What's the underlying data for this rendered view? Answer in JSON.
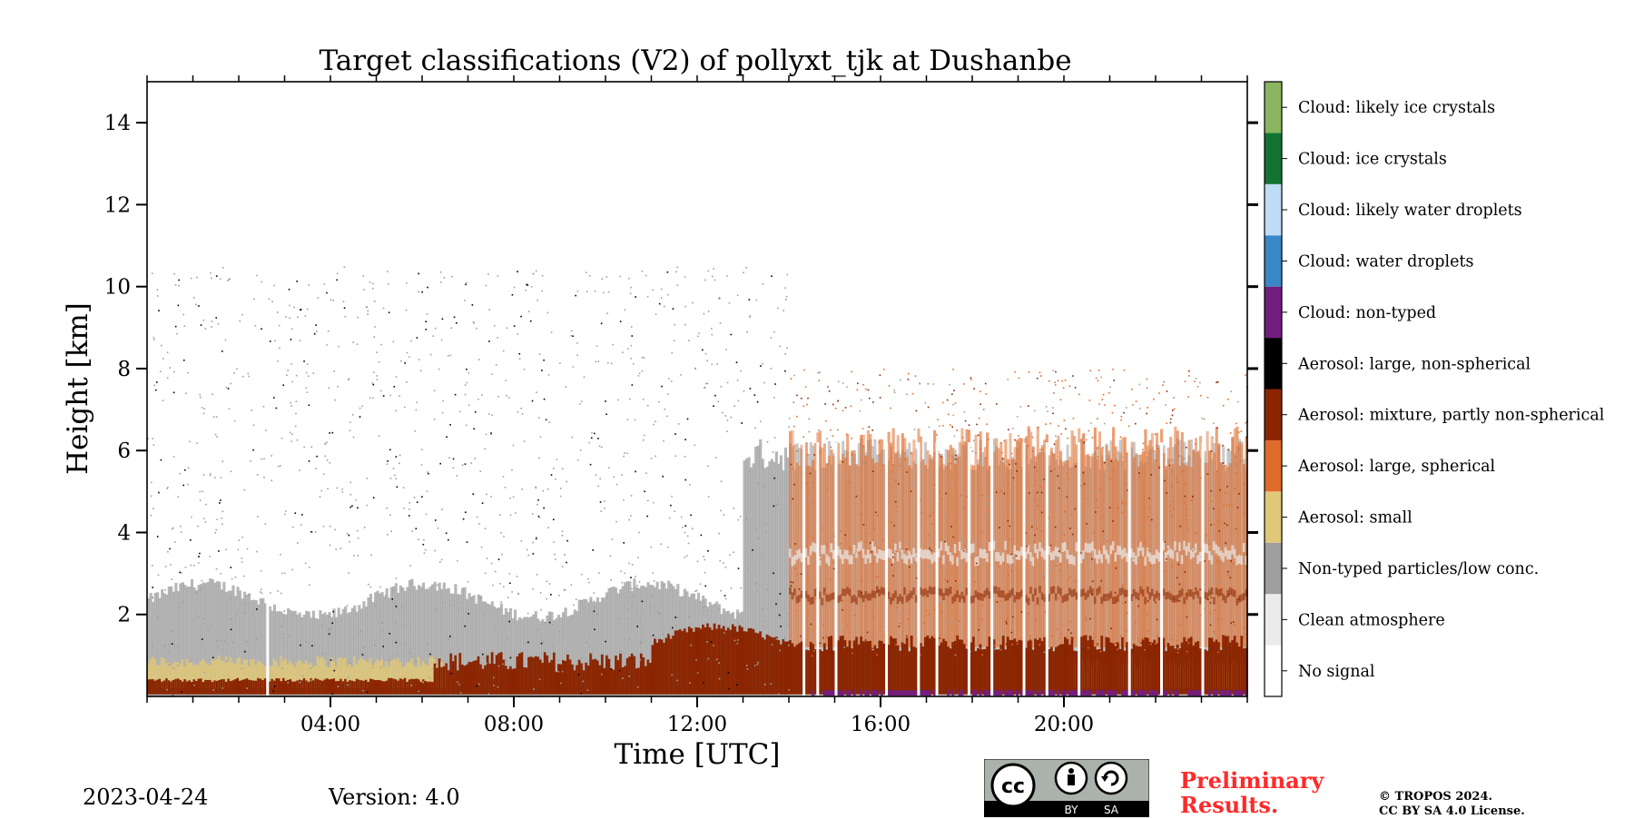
{
  "chart_data": {
    "type": "heatmap",
    "title": "Target classifications (V2) of pollyxt_tjk at Dushanbe",
    "xlabel": "Time [UTC]",
    "ylabel": "Height [km]",
    "xlim": [
      0,
      24
    ],
    "ylim": [
      0,
      15
    ],
    "x_ticks": [
      {
        "value": 4,
        "label": "04:00"
      },
      {
        "value": 8,
        "label": "08:00"
      },
      {
        "value": 12,
        "label": "12:00"
      },
      {
        "value": 16,
        "label": "16:00"
      },
      {
        "value": 20,
        "label": "20:00"
      }
    ],
    "y_ticks": [
      {
        "value": 2,
        "label": "2"
      },
      {
        "value": 4,
        "label": "4"
      },
      {
        "value": 6,
        "label": "6"
      },
      {
        "value": 8,
        "label": "8"
      },
      {
        "value": 10,
        "label": "10"
      },
      {
        "value": 12,
        "label": "12"
      },
      {
        "value": 14,
        "label": "14"
      }
    ],
    "classes": [
      {
        "label": "No signal",
        "color": "#ffffff"
      },
      {
        "label": "Clean atmosphere",
        "color": "#ebebeb"
      },
      {
        "label": "Non-typed particles/low conc.",
        "color": "#9e9e9e"
      },
      {
        "label": "Aerosol: small",
        "color": "#e1c878"
      },
      {
        "label": "Aerosol: large, spherical",
        "color": "#e06c2c"
      },
      {
        "label": "Aerosol: mixture, partly non-spherical",
        "color": "#8b2500"
      },
      {
        "label": "Aerosol: large, non-spherical",
        "color": "#000000"
      },
      {
        "label": "Cloud: non-typed",
        "color": "#721d7f"
      },
      {
        "label": "Cloud: water droplets",
        "color": "#3a87c7"
      },
      {
        "label": "Cloud: likely water droplets",
        "color": "#bfdcf7"
      },
      {
        "label": "Cloud: ice crystals",
        "color": "#137333"
      },
      {
        "label": "Cloud: likely ice crystals",
        "color": "#89b560"
      }
    ],
    "features": [
      {
        "class": "Aerosol: mixture, partly non-spherical",
        "time_range": [
          6.2,
          24
        ],
        "height_top_km": 1.2
      },
      {
        "class": "Aerosol: mixture, partly non-spherical",
        "time_range": [
          0,
          24
        ],
        "height_top_km": 0.35
      },
      {
        "class": "Aerosol: small",
        "time_range": [
          0,
          6
        ],
        "height_top_km": 0.8
      },
      {
        "class": "Non-typed particles/low conc.",
        "time_range": [
          0,
          13
        ],
        "height_top_km": 2.3
      },
      {
        "class": "Aerosol: large, spherical",
        "time_range": [
          14,
          24
        ],
        "height_top_km": 6.5
      },
      {
        "class": "Cloud: non-typed",
        "time_range": [
          14.5,
          24
        ],
        "height_top_km": 0.15
      }
    ]
  },
  "footer": {
    "date": "2023-04-24",
    "version": "Version: 4.0",
    "preliminary_line1": "Preliminary",
    "preliminary_line2": "Results.",
    "copyright_line1": "© TROPOS 2024.",
    "copyright_line2": "CC BY SA 4.0 License.",
    "license_badge": {
      "cc": "cc",
      "by": "BY",
      "sa": "SA"
    }
  }
}
